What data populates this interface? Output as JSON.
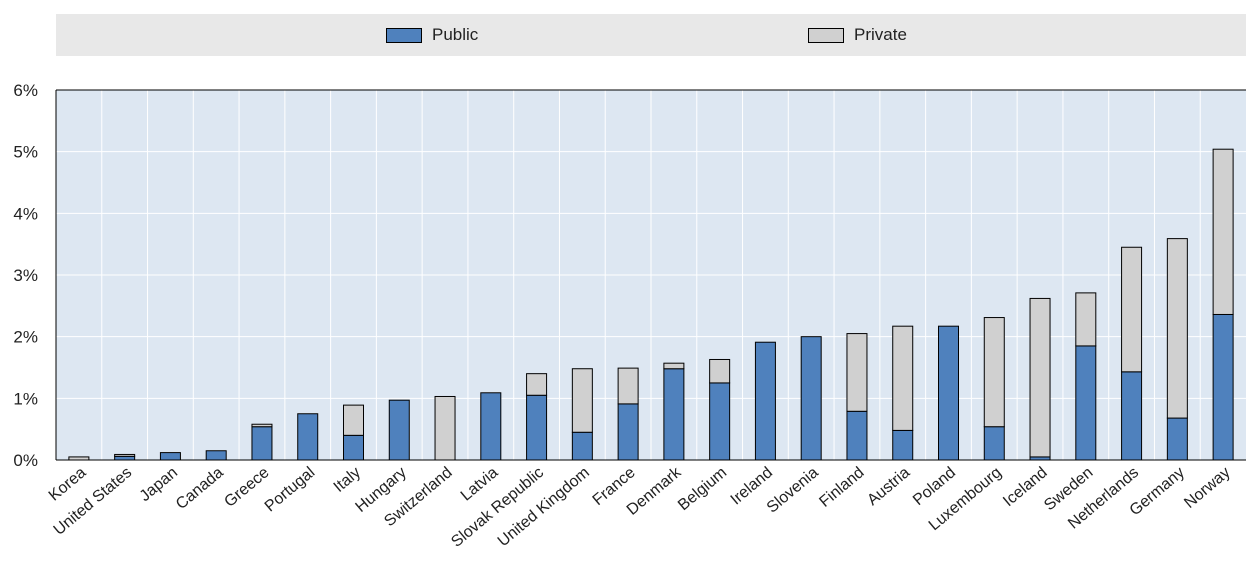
{
  "legend": {
    "public_label": "Public",
    "private_label": "Private"
  },
  "colors": {
    "public": "#4f81bd",
    "private": "#d0d0d0",
    "plot_bg": "#dde7f2",
    "grid": "#ffffff"
  },
  "chart_data": {
    "type": "bar",
    "stacked": true,
    "categories": [
      "Korea",
      "United States",
      "Japan",
      "Canada",
      "Greece",
      "Portugal",
      "Italy",
      "Hungary",
      "Switzerland",
      "Latvia",
      "Slovak Republic",
      "United Kingdom",
      "France",
      "Denmark",
      "Belgium",
      "Ireland",
      "Slovenia",
      "Finland",
      "Austria",
      "Poland",
      "Luxembourg",
      "Iceland",
      "Sweden",
      "Netherlands",
      "Germany",
      "Norway"
    ],
    "series": [
      {
        "name": "Public",
        "values": [
          0.0,
          0.06,
          0.12,
          0.15,
          0.54,
          0.75,
          0.4,
          0.97,
          0.0,
          1.09,
          1.05,
          0.45,
          0.91,
          1.48,
          1.25,
          1.91,
          2.0,
          0.79,
          0.48,
          2.17,
          0.54,
          0.05,
          1.85,
          1.43,
          0.68,
          2.36
        ]
      },
      {
        "name": "Private",
        "values": [
          0.05,
          0.03,
          0.0,
          0.0,
          0.04,
          0.0,
          0.49,
          0.0,
          1.03,
          0.0,
          0.35,
          1.03,
          0.58,
          0.09,
          0.38,
          0.0,
          0.0,
          1.26,
          1.69,
          0.0,
          1.77,
          2.57,
          0.86,
          2.02,
          2.91,
          2.68
        ]
      }
    ],
    "ylim": [
      0,
      6
    ],
    "yticks": [
      "0%",
      "1%",
      "2%",
      "3%",
      "4%",
      "5%",
      "6%"
    ],
    "legend_position": "top",
    "grid": true
  }
}
